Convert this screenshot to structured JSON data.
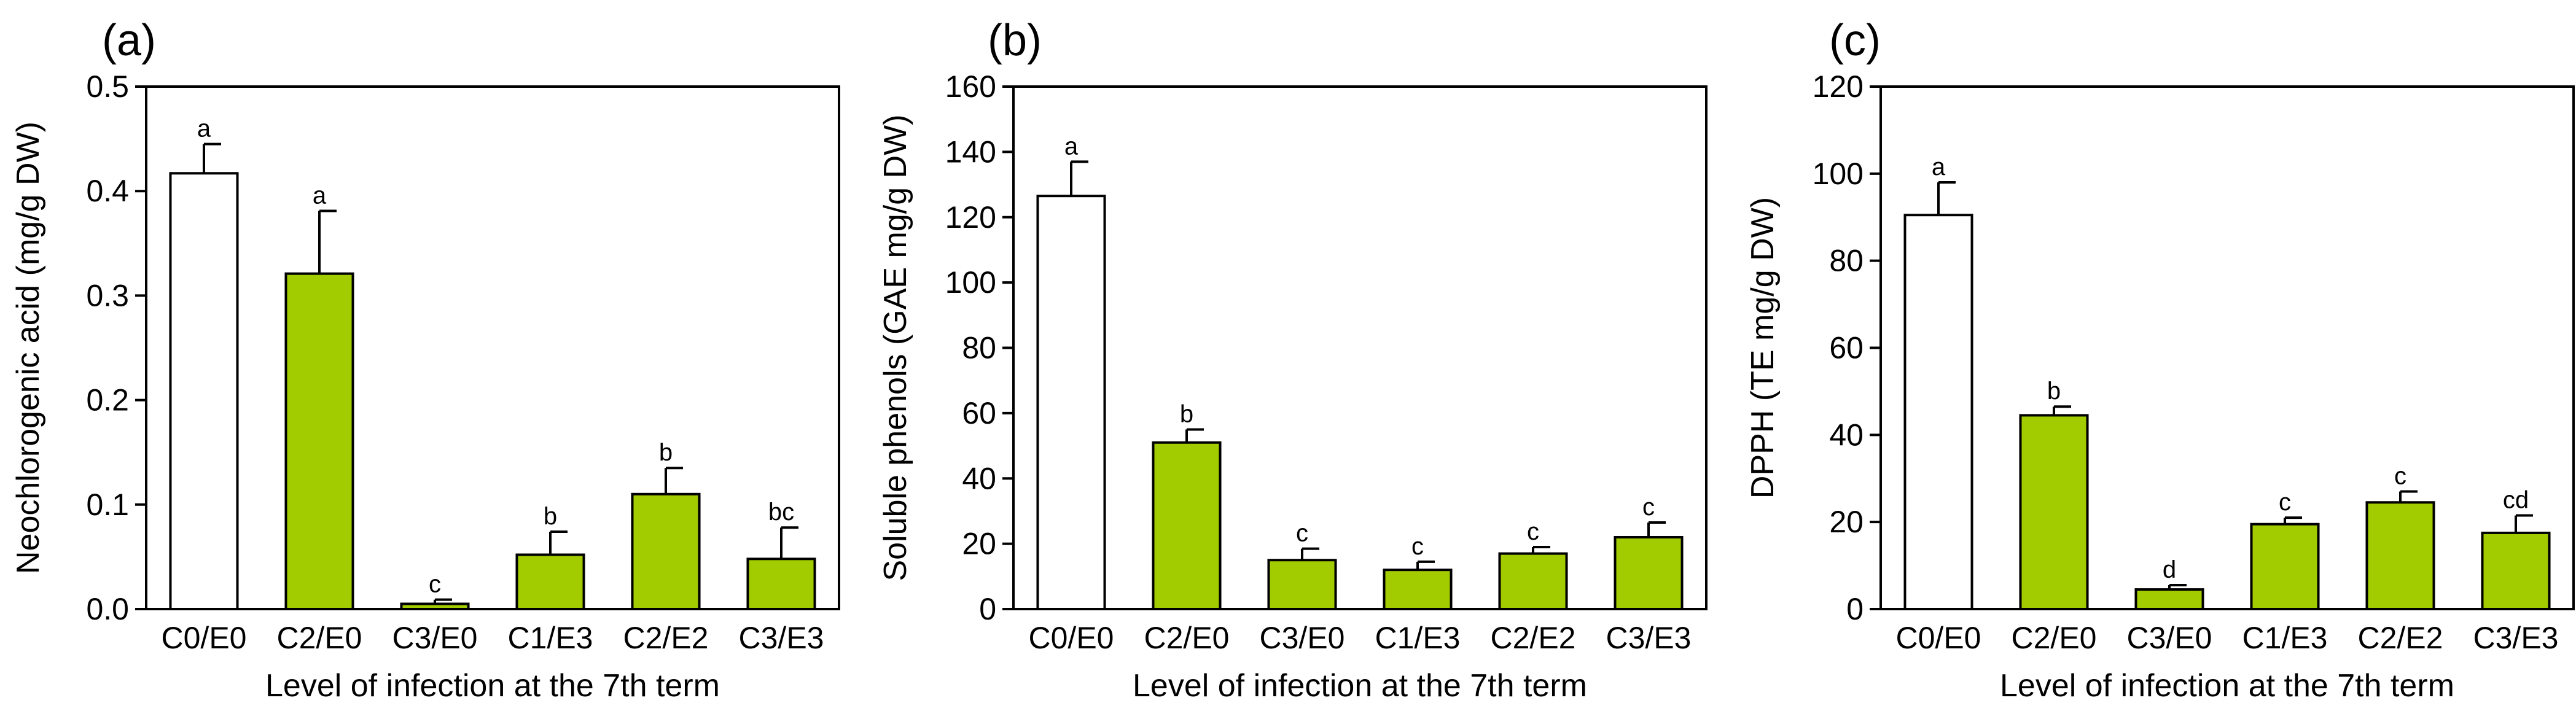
{
  "colors": {
    "control": "#ffffff",
    "treated": "#a3cc00",
    "stroke": "#000000"
  },
  "chart_data": [
    {
      "type": "bar",
      "panel": "(a)",
      "categories": [
        "C0/E0",
        "C2/E0",
        "C3/E0",
        "C1/E3",
        "C2/E2",
        "C3/E3"
      ],
      "values": [
        0.417,
        0.321,
        0.005,
        0.052,
        0.11,
        0.048
      ],
      "errors": [
        0.028,
        0.06,
        0.004,
        0.022,
        0.025,
        0.03
      ],
      "letters": [
        "a",
        "a",
        "c",
        "b",
        "b",
        "bc"
      ],
      "ylabel": "Neochlorogenic acid (mg/g DW)",
      "xlabel": "Level of infection at the 7th term",
      "ylim": [
        0,
        0.5
      ],
      "yticks": [
        0.0,
        0.1,
        0.2,
        0.3,
        0.4,
        0.5
      ],
      "ytick_labels": [
        "0.0",
        "0.1",
        "0.2",
        "0.3",
        "0.4",
        "0.5"
      ]
    },
    {
      "type": "bar",
      "panel": "(b)",
      "categories": [
        "C0/E0",
        "C2/E0",
        "C3/E0",
        "C1/E3",
        "C2/E2",
        "C3/E3"
      ],
      "values": [
        126.5,
        51.0,
        15.0,
        12.0,
        17.0,
        22.0
      ],
      "errors": [
        10.5,
        4.0,
        3.5,
        2.5,
        2.0,
        4.5
      ],
      "letters": [
        "a",
        "b",
        "c",
        "c",
        "c",
        "c"
      ],
      "ylabel": "Soluble phenols (GAE mg/g DW)",
      "xlabel": "Level of infection at the 7th term",
      "ylim": [
        0,
        160
      ],
      "yticks": [
        0,
        20,
        40,
        60,
        80,
        100,
        120,
        140,
        160
      ],
      "ytick_labels": [
        "0",
        "20",
        "40",
        "60",
        "80",
        "100",
        "120",
        "140",
        "160"
      ]
    },
    {
      "type": "bar",
      "panel": "(c)",
      "categories": [
        "C0/E0",
        "C2/E0",
        "C3/E0",
        "C1/E3",
        "C2/E2",
        "C3/E3"
      ],
      "values": [
        90.5,
        44.5,
        4.5,
        19.5,
        24.5,
        17.5
      ],
      "errors": [
        7.5,
        2.0,
        1.0,
        1.5,
        2.5,
        4.0
      ],
      "letters": [
        "a",
        "b",
        "d",
        "c",
        "c",
        "cd"
      ],
      "ylabel": "DPPH (TE mg/g DW)",
      "xlabel": "Level of infection at the 7th term",
      "ylim": [
        0,
        120
      ],
      "yticks": [
        0,
        20,
        40,
        60,
        80,
        100,
        120
      ],
      "ytick_labels": [
        "0",
        "20",
        "40",
        "60",
        "80",
        "100",
        "120"
      ]
    }
  ]
}
